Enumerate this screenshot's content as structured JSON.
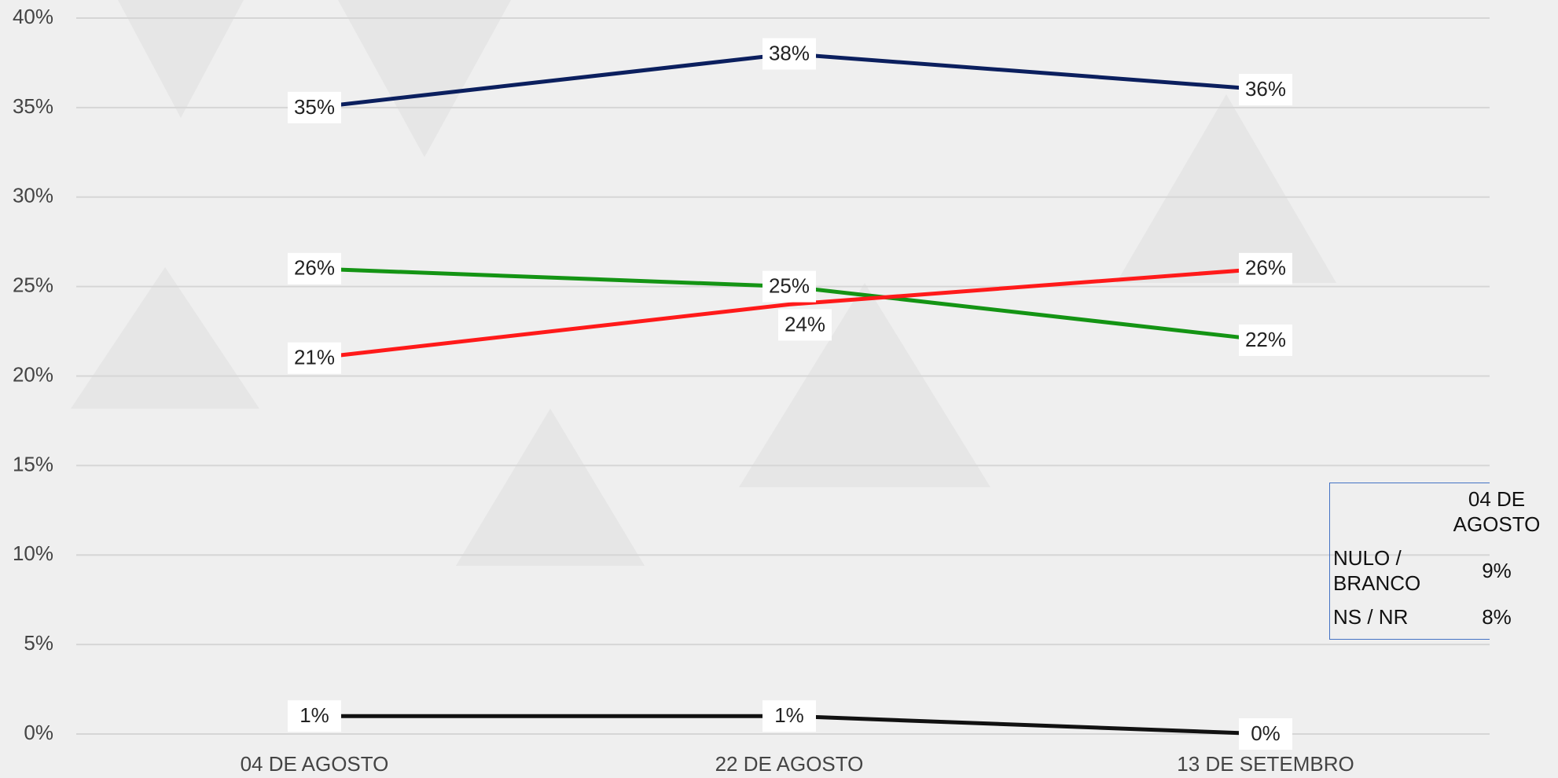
{
  "chart_data": {
    "type": "line",
    "categories": [
      "04 DE AGOSTO",
      "22 DE AGOSTO",
      "13 DE SETEMBRO"
    ],
    "series": [
      {
        "color": "#0b1f5e",
        "values": [
          35,
          38,
          36
        ],
        "value_labels": [
          "35%",
          "38%",
          "36%"
        ]
      },
      {
        "color": "#149414",
        "values": [
          26,
          25,
          22
        ],
        "value_labels": [
          "26%",
          "25%",
          "22%"
        ]
      },
      {
        "color": "#ff1a1a",
        "values": [
          21,
          24,
          26
        ],
        "value_labels": [
          "21%",
          "24%",
          "26%"
        ]
      },
      {
        "color": "#111111",
        "values": [
          1,
          1,
          0
        ],
        "value_labels": [
          "1%",
          "1%",
          "0%"
        ]
      }
    ],
    "ylim": [
      0,
      40
    ],
    "yticks": [
      {
        "value": 0,
        "label": "0%"
      },
      {
        "value": 5,
        "label": "5%"
      },
      {
        "value": 10,
        "label": "10%"
      },
      {
        "value": 15,
        "label": "15%"
      },
      {
        "value": 20,
        "label": "20%"
      },
      {
        "value": 25,
        "label": "25%"
      },
      {
        "value": 30,
        "label": "30%"
      },
      {
        "value": 35,
        "label": "35%"
      },
      {
        "value": 40,
        "label": "40%"
      }
    ],
    "grid": true
  },
  "table": {
    "header": [
      "04 DE AGOSTO"
    ],
    "rows": [
      [
        "NULO / BRANCO",
        "9%"
      ],
      [
        "NS / NR",
        "8%"
      ]
    ]
  }
}
